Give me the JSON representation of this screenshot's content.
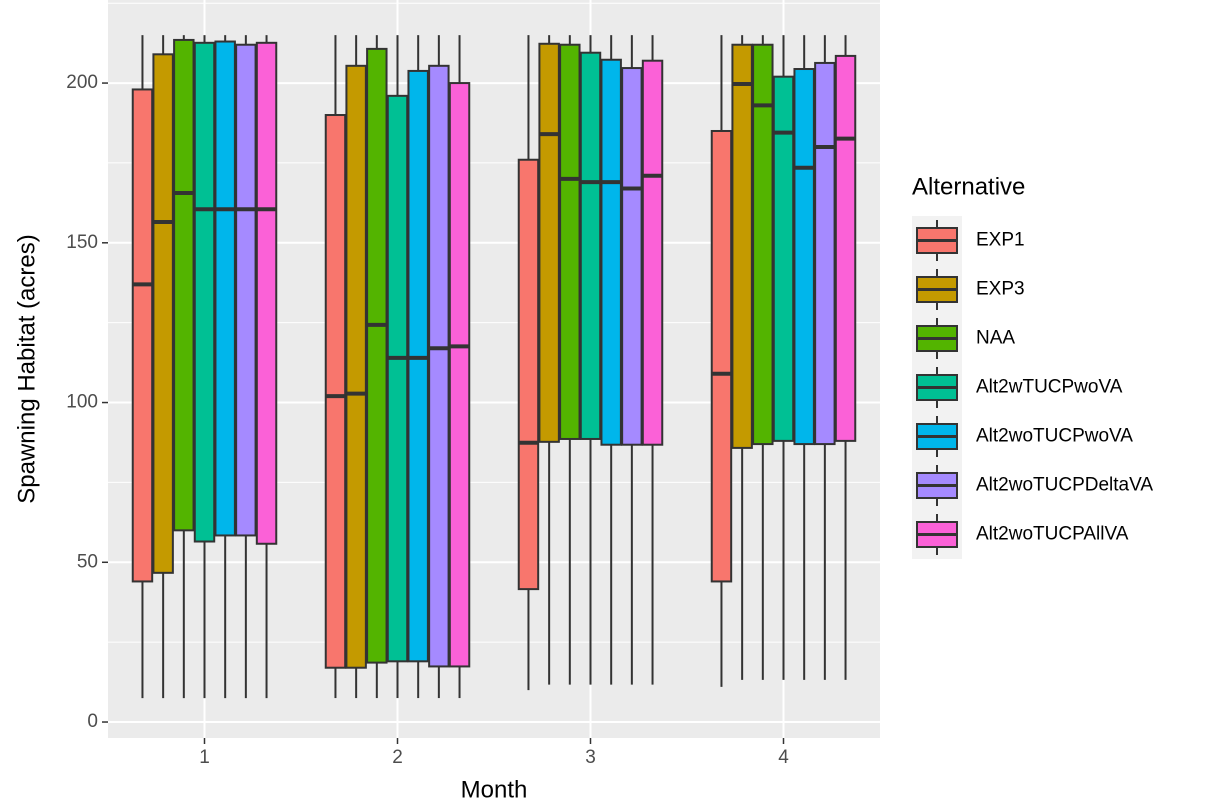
{
  "chart_data": {
    "type": "boxplot",
    "x_label": "Month",
    "y_label": "Spawning Habitat (acres)",
    "categories": [
      "1",
      "2",
      "3",
      "4"
    ],
    "ylim": [
      -5,
      226
    ],
    "yticks": [
      0,
      50,
      100,
      150,
      200
    ],
    "y_minor_ticks": [
      25,
      75,
      125,
      175,
      225
    ],
    "grid": true,
    "legend_title": "Alternative",
    "legend_position": "right",
    "series": [
      {
        "name": "EXP1",
        "color": "#F8766D",
        "min": [
          7.5,
          7.5,
          10,
          11
        ],
        "q1": [
          44,
          17,
          41.6,
          44
        ],
        "median": [
          137,
          102,
          87.4,
          109
        ],
        "q3": [
          198,
          190,
          176,
          185
        ],
        "max": [
          215,
          215,
          215,
          215
        ]
      },
      {
        "name": "EXP3",
        "color": "#C49A00",
        "min": [
          7.5,
          7.5,
          11.7,
          13.2
        ],
        "q1": [
          46.7,
          17,
          87.7,
          85.8
        ],
        "median": [
          156.5,
          102.8,
          184,
          199.7
        ],
        "q3": [
          209,
          205.4,
          212.3,
          212
        ],
        "max": [
          215,
          215,
          215,
          215
        ]
      },
      {
        "name": "NAA",
        "color": "#53B400",
        "min": [
          7.5,
          7.5,
          11.7,
          13.2
        ],
        "q1": [
          60,
          18.6,
          88.6,
          87
        ],
        "median": [
          165.6,
          124.3,
          170,
          193
        ],
        "q3": [
          213.5,
          210.7,
          212,
          212
        ],
        "max": [
          215,
          215,
          215,
          215
        ]
      },
      {
        "name": "Alt2wTUCPwoVA",
        "color": "#00C094",
        "min": [
          7.5,
          7.5,
          11.7,
          13.2
        ],
        "q1": [
          56.5,
          19,
          88.6,
          88
        ],
        "median": [
          160.5,
          114,
          169,
          184.5
        ],
        "q3": [
          212.6,
          196,
          209.5,
          202
        ],
        "max": [
          215,
          215,
          215,
          215
        ]
      },
      {
        "name": "Alt2woTUCPwoVA",
        "color": "#00B6EB",
        "min": [
          7.5,
          7.5,
          11.7,
          13.2
        ],
        "q1": [
          58.4,
          19,
          86.8,
          87
        ],
        "median": [
          160.5,
          114,
          169,
          173.5
        ],
        "q3": [
          213,
          203.8,
          207.3,
          204.4
        ],
        "max": [
          215,
          215,
          215,
          215
        ]
      },
      {
        "name": "Alt2woTUCPDeltaVA",
        "color": "#A58AFF",
        "min": [
          7.5,
          7.5,
          11.7,
          13.2
        ],
        "q1": [
          58.4,
          17.4,
          86.8,
          87
        ],
        "median": [
          160.5,
          117,
          167,
          180
        ],
        "q3": [
          212,
          205.4,
          204.7,
          206.3
        ],
        "max": [
          215,
          215,
          215,
          215
        ]
      },
      {
        "name": "Alt2woTUCPAllVA",
        "color": "#FB61D7",
        "min": [
          7.5,
          7.5,
          11.7,
          13.2
        ],
        "q1": [
          55.8,
          17.4,
          86.8,
          88
        ],
        "median": [
          160.5,
          117.6,
          171,
          182.6
        ],
        "q3": [
          212.6,
          200,
          207,
          208.5
        ],
        "max": [
          215,
          215,
          215,
          215
        ]
      }
    ]
  }
}
